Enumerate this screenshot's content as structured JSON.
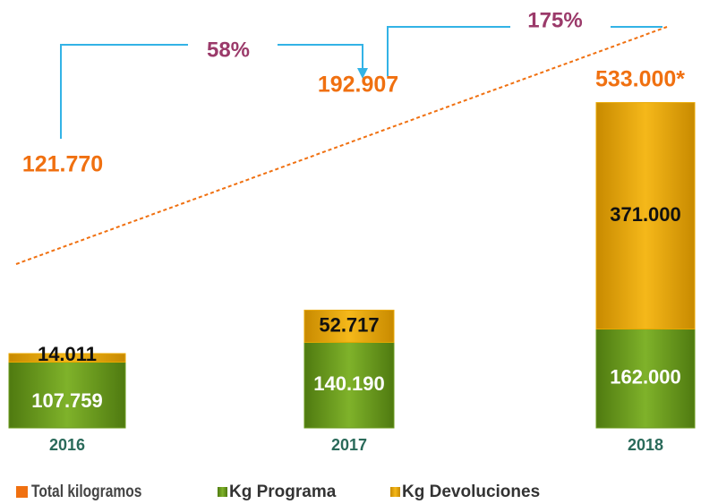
{
  "chart_data": {
    "type": "stacked-bar",
    "categories": [
      "2016",
      "2017",
      "2018"
    ],
    "series": [
      {
        "name": "Kg Programa",
        "color": "#6b9b1e",
        "values": [
          107759,
          140190,
          162000
        ],
        "value_labels": [
          "107.759",
          "140.190",
          "162.000"
        ]
      },
      {
        "name": "Kg Devoluciones",
        "color": "#e9a800",
        "values": [
          14011,
          52717,
          371000
        ],
        "value_labels": [
          "14.011",
          "52.717",
          "371.000"
        ]
      }
    ],
    "totals": {
      "name": "Total kilogramos",
      "color": "#f07010",
      "values": [
        121770,
        192907,
        533000
      ],
      "value_labels": [
        "121.770",
        "192.907",
        "533.000*"
      ]
    },
    "annotations": [
      "58%",
      "175%"
    ],
    "ylim": [
      0,
      550000
    ]
  }
}
